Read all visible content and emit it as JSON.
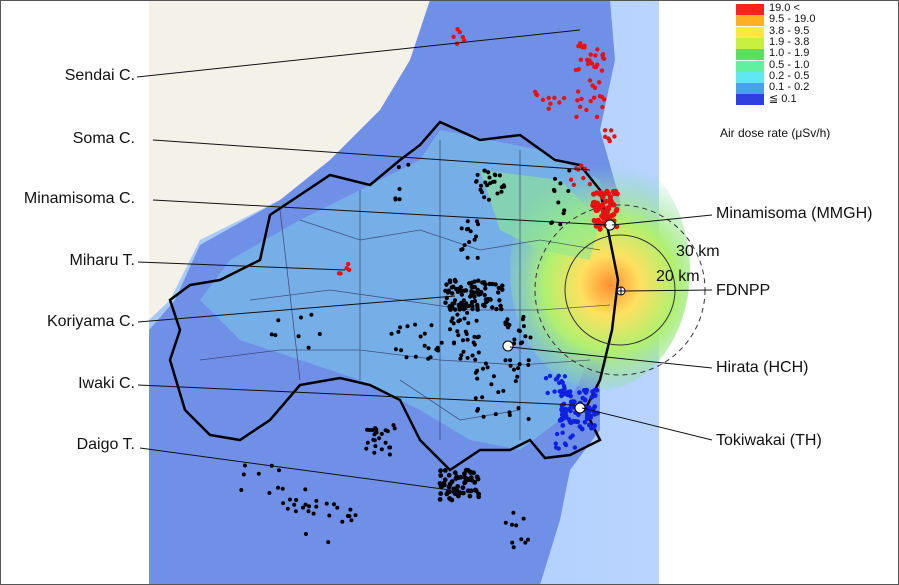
{
  "labels_left": [
    {
      "key": "sendai",
      "text": "Sendai C."
    },
    {
      "key": "soma",
      "text": "Soma C."
    },
    {
      "key": "minamisoma",
      "text": "Minamisoma C."
    },
    {
      "key": "miharu",
      "text": "Miharu T."
    },
    {
      "key": "koriyama",
      "text": "Koriyama C."
    },
    {
      "key": "iwaki",
      "text": "Iwaki C."
    },
    {
      "key": "daigo",
      "text": "Daigo T."
    }
  ],
  "labels_right": [
    {
      "key": "mmgh",
      "text": "Minamisoma (MMGH)"
    },
    {
      "key": "fdnpp",
      "text": "FDNPP"
    },
    {
      "key": "hch",
      "text": "Hirata (HCH)"
    },
    {
      "key": "th",
      "text": "Tokiwakai (TH)"
    }
  ],
  "rings": {
    "outer": "30 km",
    "inner": "20 km"
  },
  "legend": {
    "title": "Air dose rate (μSv/h)",
    "items": [
      {
        "label": "19.0  <",
        "color": "#ff2020"
      },
      {
        "label": "9.5 - 19.0",
        "color": "#ffb020"
      },
      {
        "label": "3.8 - 9.5",
        "color": "#ffe840"
      },
      {
        "label": "1.9 - 3.8",
        "color": "#c8f040"
      },
      {
        "label": "1.0 - 1.9",
        "color": "#5ee05e"
      },
      {
        "label": "0.5 - 1.0",
        "color": "#60f0a0"
      },
      {
        "label": "0.2 - 0.5",
        "color": "#60e8f0"
      },
      {
        "label": "0.1 - 0.2",
        "color": "#4aa0f0"
      },
      {
        "label": "≦ 0.1",
        "color": "#3040e0"
      }
    ]
  }
}
